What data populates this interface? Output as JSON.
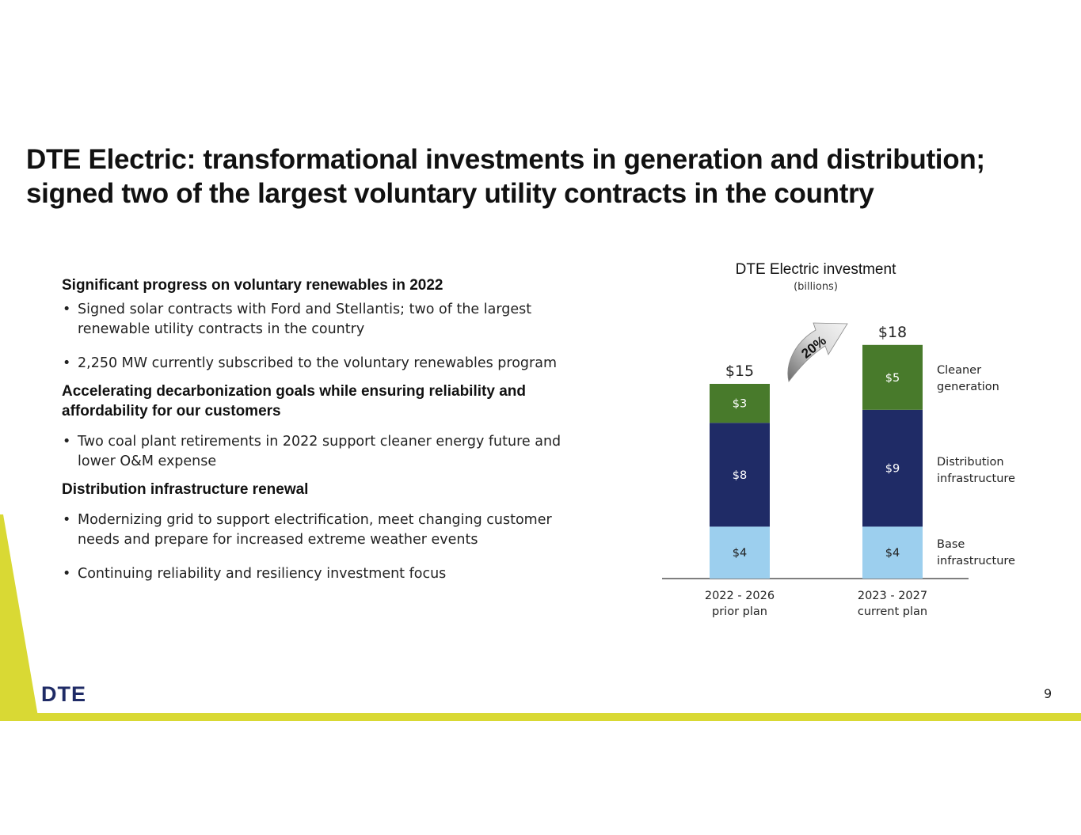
{
  "title": {
    "line1": "DTE Electric: transformational investments in generation and distribution;",
    "line2": "signed two of the largest voluntary utility contracts in the country"
  },
  "sections": [
    {
      "heading": "Significant progress on voluntary renewables in 2022",
      "bullets": [
        "Signed solar contracts with Ford and Stellantis; two of the largest renewable utility contracts in the country",
        "2,250 MW currently subscribed to the voluntary renewables program"
      ]
    },
    {
      "heading": "Accelerating decarbonization goals while ensuring reliability and affordability for our customers",
      "bullets": [
        "Two coal plant retirements in 2022 support cleaner energy future and lower O&M expense"
      ]
    },
    {
      "heading": "Distribution infrastructure renewal",
      "bullets": [
        "Modernizing grid to support electrification, meet changing customer needs and prepare for increased extreme weather events",
        "Continuing reliability and resiliency investment focus"
      ]
    }
  ],
  "chart_data": {
    "type": "bar",
    "stacked": true,
    "title": "DTE Electric investment",
    "subtitle": "(billions)",
    "categories": [
      [
        "2022 - 2026",
        "prior plan"
      ],
      [
        "2023 - 2027",
        "current plan"
      ]
    ],
    "totals": [
      "$15",
      "$18"
    ],
    "growth_label": "20%",
    "series": [
      {
        "name": "Base infrastructure",
        "values": [
          4,
          4
        ],
        "labels": [
          "$4",
          "$4"
        ],
        "color": "#9ccfee",
        "label_color": "#222222"
      },
      {
        "name": "Distribution infrastructure",
        "values": [
          8,
          9
        ],
        "labels": [
          "$8",
          "$9"
        ],
        "color": "#1f2b66",
        "label_color": "#ffffff"
      },
      {
        "name": "Cleaner generation",
        "values": [
          3,
          5
        ],
        "labels": [
          "$3",
          "$5"
        ],
        "color": "#487a2b",
        "label_color": "#ffffff"
      }
    ],
    "legend": [
      {
        "label_line1": "Cleaner",
        "label_line2": "generation"
      },
      {
        "label_line1": "Distribution",
        "label_line2": "infrastructure"
      },
      {
        "label_line1": "Base",
        "label_line2": "infrastructure"
      }
    ]
  },
  "footer": {
    "brand": "DTE",
    "page_number": "9"
  },
  "colors": {
    "accent_yellow": "#d9d934",
    "brand_navy": "#1f2b66"
  }
}
